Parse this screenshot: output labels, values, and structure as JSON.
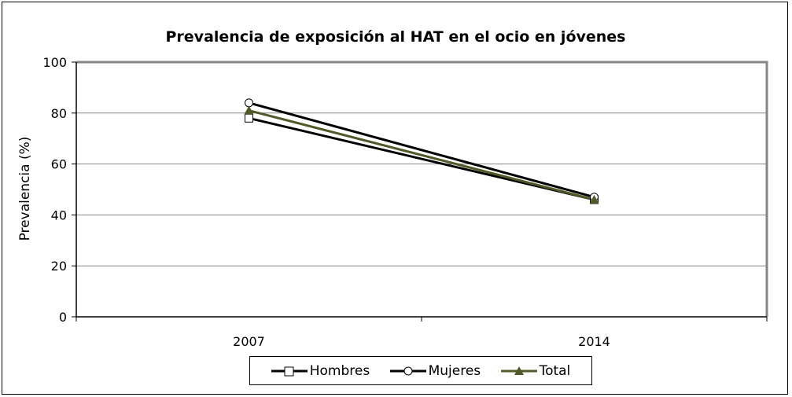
{
  "chart_data": {
    "type": "line",
    "title": "Prevalencia de exposición al HAT en el ocio en jóvenes",
    "xlabel": "",
    "ylabel": "Prevalencia (%)",
    "ylim": [
      0,
      100
    ],
    "yticks": [
      "0",
      "20",
      "40",
      "60",
      "80",
      "100"
    ],
    "categories": [
      "2007",
      "2014"
    ],
    "grid": true,
    "legend_position": "bottom",
    "series": [
      {
        "name": "Hombres",
        "values": [
          78,
          46
        ],
        "color": "#000000",
        "marker": "square"
      },
      {
        "name": "Mujeres",
        "values": [
          84,
          47
        ],
        "color": "#000000",
        "marker": "circle"
      },
      {
        "name": "Total",
        "values": [
          81,
          46
        ],
        "color": "#4f5a28",
        "marker": "triangle"
      }
    ]
  },
  "legend": {
    "items": [
      {
        "label": "Hombres"
      },
      {
        "label": "Mujeres"
      },
      {
        "label": "Total"
      }
    ]
  }
}
